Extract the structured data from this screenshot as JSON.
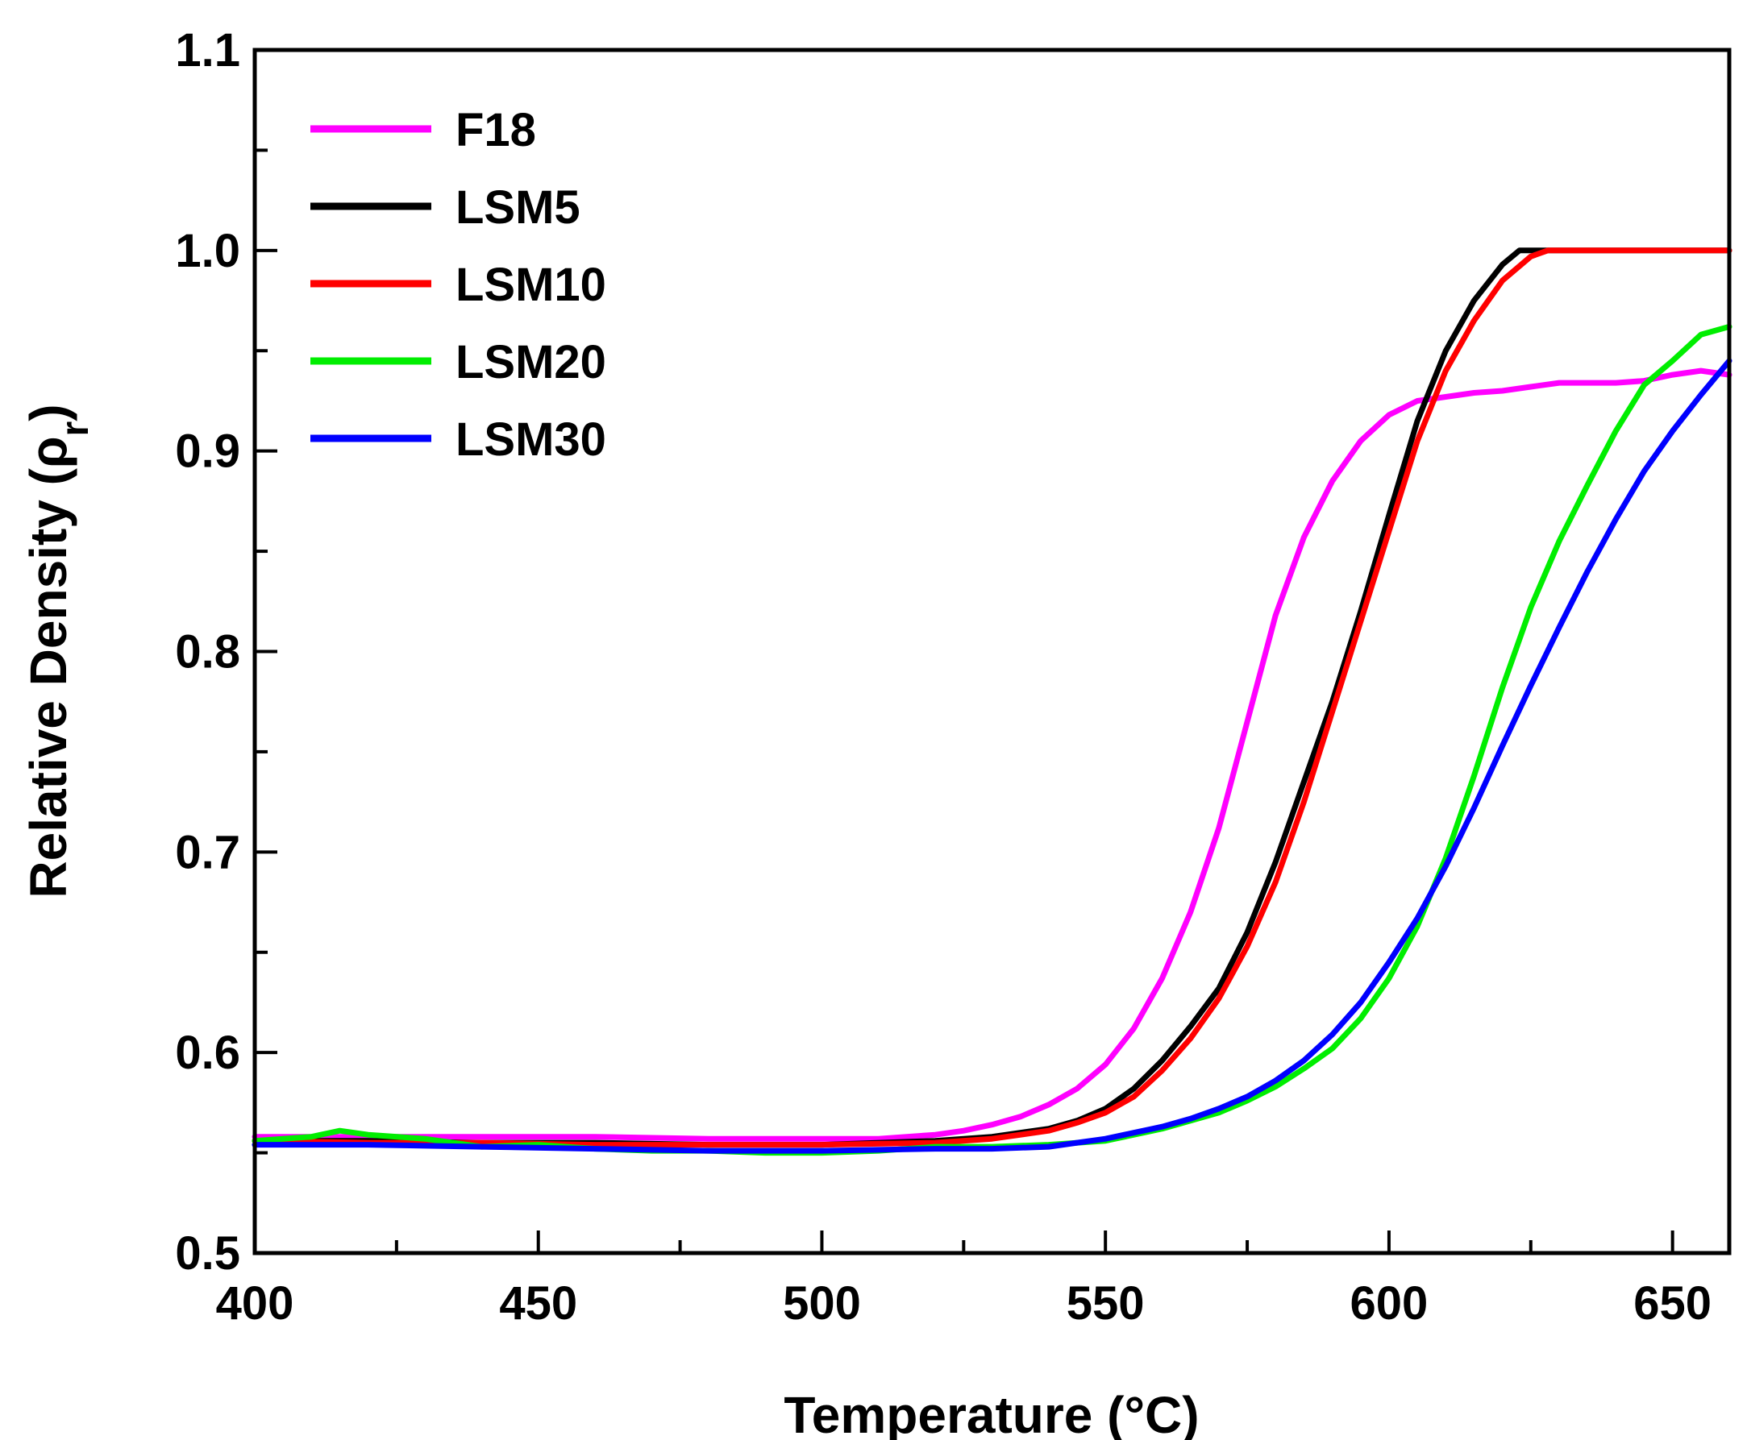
{
  "chart_data": {
    "type": "line",
    "title": "",
    "xlabel": "Temperature (°C)",
    "ylabel_main": "Relative Density (ρ",
    "ylabel_sub": "r",
    "ylabel_close": ")",
    "xlim": [
      400,
      660
    ],
    "ylim": [
      0.5,
      1.1
    ],
    "xticks": [
      400,
      450,
      500,
      550,
      600,
      650
    ],
    "xtick_labels": [
      "400",
      "450",
      "500",
      "550",
      "600",
      "650"
    ],
    "yticks": [
      0.5,
      0.6,
      0.7,
      0.8,
      0.9,
      1.0,
      1.1
    ],
    "ytick_labels": [
      "0.5",
      "0.6",
      "0.7",
      "0.8",
      "0.9",
      "1.0",
      "1.1"
    ],
    "legend_position": "top-left",
    "grid": false,
    "series": [
      {
        "name": "F18",
        "color": "#ff00ff",
        "x": [
          400,
          420,
          440,
          460,
          480,
          500,
          510,
          520,
          525,
          530,
          535,
          540,
          545,
          550,
          555,
          560,
          565,
          570,
          575,
          580,
          585,
          590,
          595,
          600,
          605,
          610,
          615,
          620,
          625,
          630,
          635,
          640,
          645,
          650,
          655,
          660
        ],
        "y": [
          0.558,
          0.558,
          0.558,
          0.558,
          0.557,
          0.557,
          0.557,
          0.559,
          0.561,
          0.564,
          0.568,
          0.574,
          0.582,
          0.594,
          0.612,
          0.637,
          0.67,
          0.712,
          0.765,
          0.818,
          0.857,
          0.885,
          0.905,
          0.918,
          0.925,
          0.927,
          0.929,
          0.93,
          0.932,
          0.934,
          0.934,
          0.934,
          0.935,
          0.938,
          0.94,
          0.938
        ]
      },
      {
        "name": "LSM5",
        "color": "#000000",
        "x": [
          400,
          420,
          440,
          460,
          480,
          500,
          520,
          530,
          540,
          545,
          550,
          555,
          560,
          565,
          570,
          575,
          580,
          585,
          590,
          595,
          600,
          605,
          610,
          615,
          620,
          623,
          660
        ],
        "y": [
          0.556,
          0.556,
          0.555,
          0.555,
          0.554,
          0.554,
          0.556,
          0.558,
          0.562,
          0.566,
          0.572,
          0.582,
          0.596,
          0.613,
          0.632,
          0.66,
          0.695,
          0.735,
          0.775,
          0.82,
          0.868,
          0.915,
          0.95,
          0.975,
          0.993,
          1.0,
          1.0
        ]
      },
      {
        "name": "LSM10",
        "color": "#ff0000",
        "x": [
          400,
          420,
          440,
          460,
          480,
          500,
          520,
          530,
          540,
          545,
          550,
          555,
          560,
          565,
          570,
          575,
          580,
          585,
          590,
          595,
          600,
          605,
          610,
          615,
          620,
          625,
          628,
          660
        ],
        "y": [
          0.556,
          0.555,
          0.555,
          0.554,
          0.554,
          0.554,
          0.555,
          0.557,
          0.561,
          0.565,
          0.57,
          0.578,
          0.591,
          0.607,
          0.627,
          0.653,
          0.685,
          0.725,
          0.77,
          0.815,
          0.86,
          0.905,
          0.94,
          0.965,
          0.985,
          0.997,
          1.0,
          1.0
        ]
      },
      {
        "name": "LSM20",
        "color": "#00ee00",
        "x": [
          400,
          410,
          415,
          420,
          430,
          440,
          450,
          460,
          470,
          480,
          490,
          500,
          510,
          520,
          530,
          540,
          550,
          555,
          560,
          565,
          570,
          575,
          580,
          585,
          590,
          595,
          600,
          605,
          610,
          615,
          620,
          625,
          630,
          635,
          640,
          645,
          650,
          655,
          660
        ],
        "y": [
          0.556,
          0.558,
          0.561,
          0.559,
          0.557,
          0.553,
          0.554,
          0.552,
          0.551,
          0.551,
          0.55,
          0.55,
          0.551,
          0.553,
          0.553,
          0.554,
          0.556,
          0.559,
          0.562,
          0.566,
          0.57,
          0.576,
          0.583,
          0.592,
          0.602,
          0.617,
          0.637,
          0.663,
          0.697,
          0.738,
          0.782,
          0.822,
          0.855,
          0.883,
          0.91,
          0.933,
          0.945,
          0.958,
          0.962
        ]
      },
      {
        "name": "LSM30",
        "color": "#0000ff",
        "x": [
          400,
          420,
          440,
          460,
          480,
          500,
          520,
          530,
          540,
          545,
          550,
          555,
          560,
          565,
          570,
          575,
          580,
          585,
          590,
          595,
          600,
          605,
          610,
          615,
          620,
          625,
          630,
          635,
          640,
          645,
          650,
          655,
          660
        ],
        "y": [
          0.554,
          0.554,
          0.553,
          0.552,
          0.551,
          0.551,
          0.552,
          0.552,
          0.553,
          0.555,
          0.557,
          0.56,
          0.563,
          0.567,
          0.572,
          0.578,
          0.586,
          0.596,
          0.609,
          0.625,
          0.645,
          0.667,
          0.693,
          0.722,
          0.753,
          0.783,
          0.812,
          0.84,
          0.866,
          0.89,
          0.91,
          0.928,
          0.945
        ]
      }
    ]
  }
}
